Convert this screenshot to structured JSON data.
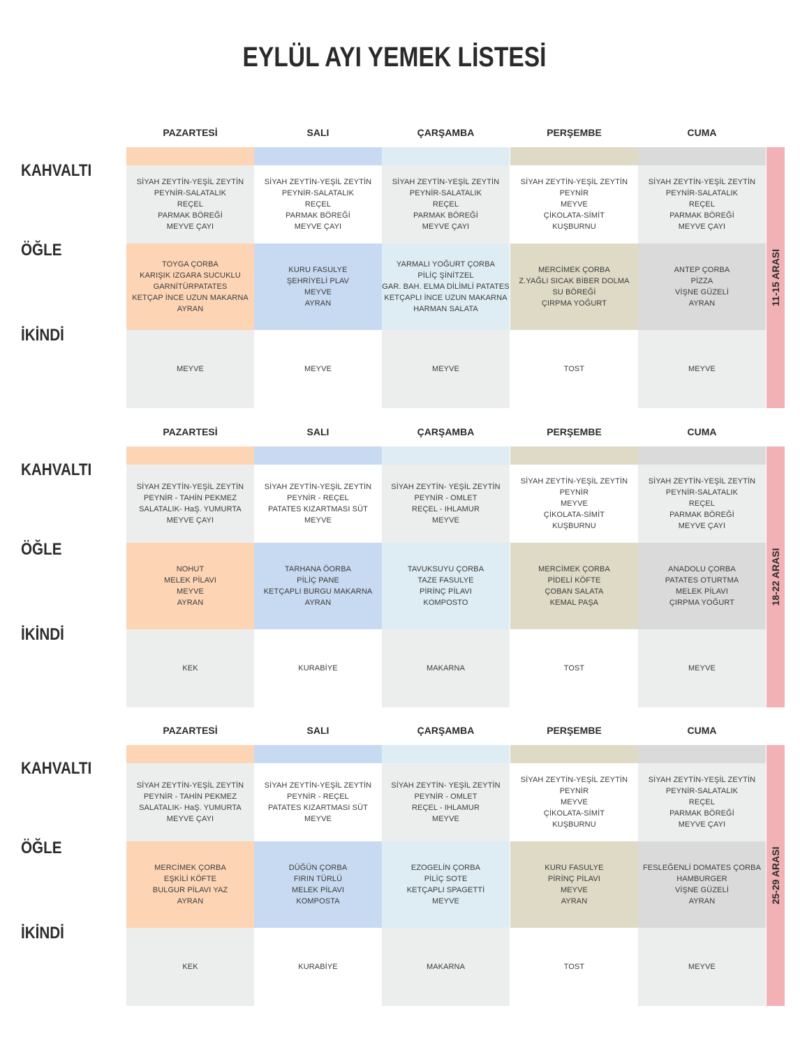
{
  "title": "EYLÜL AYI YEMEK LİSTESİ",
  "days": [
    "PAZARTESİ",
    "SALI",
    "ÇARŞAMBA",
    "PERŞEMBE",
    "CUMA"
  ],
  "meals": [
    "KAHVALTI",
    "ÖĞLE",
    "İKİNDİ"
  ],
  "colors": {
    "day_colors": [
      "#fdd5b5",
      "#c8daf1",
      "#ddedf3",
      "#dedac6",
      "#dadada"
    ],
    "white": "#ffffff",
    "light_gray": "#eceeed",
    "side_tab": "#f2b1b4"
  },
  "weeks": [
    {
      "range": "11-15 ARASI",
      "cells": [
        [
          [
            "SİYAH ZEYTİN-YEŞİL ZEYTİN",
            "PEYNİR-SALATALIK",
            "REÇEL",
            "PARMAK BÖREĞİ",
            "MEYVE ÇAYI"
          ],
          [
            "SİYAH ZEYTİN-YEŞİL ZEYTİN",
            "PEYNİR-SALATALIK",
            "REÇEL",
            "PARMAK BÖREĞİ",
            "MEYVE ÇAYI"
          ],
          [
            "SİYAH ZEYTİN-YEŞİL ZEYTİN",
            "PEYNİR-SALATALIK",
            "REÇEL",
            "PARMAK BÖREĞİ",
            "MEYVE ÇAYI"
          ],
          [
            "SİYAH ZEYTİN-YEŞİL ZEYTİN",
            "PEYNİR",
            "MEYVE",
            "ÇİKOLATA-SİMİT",
            "KUŞBURNU"
          ],
          [
            "SİYAH ZEYTİN-YEŞİL ZEYTİN",
            "PEYNİR-SALATALIK",
            "REÇEL",
            "PARMAK BÖREĞİ",
            "MEYVE ÇAYI"
          ]
        ],
        [
          [
            "TOYGA ÇORBA",
            "KARIŞIK IZGARA SUCUKLU",
            "GARNİTÜRPATATES",
            "KETÇAP İNCE UZUN MAKARNA",
            "AYRAN"
          ],
          [
            "KURU FASULYE",
            "ŞEHRİYELİ PLAV",
            "MEYVE",
            "AYRAN"
          ],
          [
            "YARMALI YOĞURT ÇORBA",
            "PİLİÇ ŞİNİTZEL",
            "GAR. BAH. ELMA DİLİMLİ PATATES",
            "KETÇAPLI İNCE UZUN MAKARNA",
            "HARMAN SALATA"
          ],
          [
            "MERCİMEK ÇORBA",
            "Z.YAĞLI SICAK BİBER DOLMA",
            "SU BÖREĞİ",
            "ÇIRPMA YOĞURT"
          ],
          [
            "ANTEP ÇORBA",
            "PİZZA",
            "VİŞNE GÜZELİ",
            "AYRAN"
          ]
        ],
        [
          [
            "MEYVE"
          ],
          [
            "MEYVE"
          ],
          [
            "MEYVE"
          ],
          [
            "TOST"
          ],
          [
            "MEYVE"
          ]
        ]
      ]
    },
    {
      "range": "18-22 ARASI",
      "cells": [
        [
          [
            "SİYAH ZEYTİN-YEŞİL ZEYTİN",
            "PEYNİR - TAHİN PEKMEZ",
            "SALATALIK- HaŞ. YUMURTA",
            "MEYVE ÇAYI"
          ],
          [
            "SİYAH ZEYTİN-YEŞİL ZEYTİN",
            "PEYNİR - REÇEL",
            "PATATES KIZARTMASI SÜT",
            "MEYVE"
          ],
          [
            "SİYAH ZEYTİN- YEŞİL ZEYTİN",
            "PEYNİR - OMLET",
            "REÇEL - IHLAMUR",
            "MEYVE"
          ],
          [
            "SİYAH ZEYTİN-YEŞİL ZEYTİN",
            "PEYNİR",
            "MEYVE",
            "ÇİKOLATA-SİMİT",
            "KUŞBURNU"
          ],
          [
            "SİYAH ZEYTİN-YEŞİL ZEYTİN",
            "PEYNİR-SALATALIK",
            "REÇEL",
            "PARMAK BÖREĞİ",
            "MEYVE ÇAYI"
          ]
        ],
        [
          [
            "NOHUT",
            "MELEK PİLAVI",
            "MEYVE",
            "AYRAN"
          ],
          [
            "TARHANA ÖORBA",
            "PİLİÇ PANE",
            "KETÇAPLI BURGU MAKARNA",
            "AYRAN"
          ],
          [
            "TAVUKSUYU ÇORBA",
            "TAZE FASULYE",
            "PİRİNÇ PİLAVI",
            "KOMPOSTO"
          ],
          [
            "MERCİMEK ÇORBA",
            "PİDELİ KÖFTE",
            "ÇOBAN SALATA",
            "KEMAL PAŞA"
          ],
          [
            "ANADOLU ÇORBA",
            "PATATES OTURTMA",
            "MELEK PİLAVI",
            "ÇIRPMA YOĞURT"
          ]
        ],
        [
          [
            "KEK"
          ],
          [
            "KURABİYE"
          ],
          [
            "MAKARNA"
          ],
          [
            "TOST"
          ],
          [
            "MEYVE"
          ]
        ]
      ]
    },
    {
      "range": "25-29 ARASI",
      "cells": [
        [
          [
            "SİYAH ZEYTİN-YEŞİL ZEYTİN",
            "PEYNİR - TAHİN PEKMEZ",
            "SALATALIK- HaŞ. YUMURTA",
            "MEYVE ÇAYI"
          ],
          [
            "SİYAH ZEYTİN-YEŞİL ZEYTİN",
            "PEYNİR - REÇEL",
            "PATATES KIZARTMASI SÜT",
            "MEYVE"
          ],
          [
            "SİYAH ZEYTİN- YEŞİL ZEYTİN",
            "PEYNİR - OMLET",
            "REÇEL - IHLAMUR",
            "MEYVE"
          ],
          [
            "SİYAH ZEYTİN-YEŞİL ZEYTİN",
            "PEYNİR",
            "MEYVE",
            "ÇİKOLATA-SİMİT",
            "KUŞBURNU"
          ],
          [
            "SİYAH ZEYTİN-YEŞİL ZEYTİN",
            "PEYNİR-SALATALIK",
            "REÇEL",
            "PARMAK BÖREĞİ",
            "MEYVE ÇAYI"
          ]
        ],
        [
          [
            "MERCİMEK ÇORBA",
            "EŞKİLİ KÖFTE",
            "BULGUR PİLAVI YAZ",
            "AYRAN"
          ],
          [
            "DÜĞÜN ÇORBA",
            "FIRIN TÜRLÜ",
            "MELEK PİLAVI",
            "KOMPOSTA"
          ],
          [
            "EZOGELİN ÇORBA",
            "PİLİÇ SOTE",
            "KETÇAPLI SPAGETTİ",
            "MEYVE"
          ],
          [
            "KURU FASULYE",
            "PİRİNÇ PİLAVI",
            "MEYVE",
            "AYRAN"
          ],
          [
            "FESLEĞENLİ DOMATES ÇORBA",
            "HAMBURGER",
            "VİŞNE GÜZELİ",
            "AYRAN"
          ]
        ],
        [
          [
            "KEK"
          ],
          [
            "KURABİYE"
          ],
          [
            "MAKARNA"
          ],
          [
            "TOST"
          ],
          [
            "MEYVE"
          ]
        ]
      ]
    }
  ]
}
